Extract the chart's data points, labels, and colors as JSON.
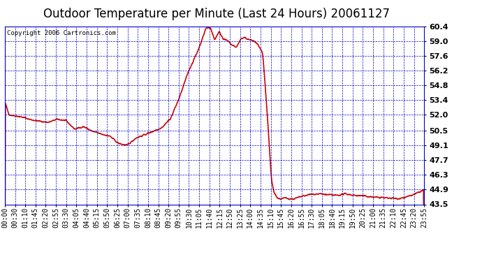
{
  "title": "Outdoor Temperature per Minute (Last 24 Hours) 20061127",
  "copyright_text": "Copyright 2006 Cartronics.com",
  "background_color": "#ffffff",
  "plot_background": "#ffffff",
  "line_color": "#cc0000",
  "grid_color": "#0000cc",
  "axis_color": "#000000",
  "text_color": "#000000",
  "yticks": [
    43.5,
    44.9,
    46.3,
    47.7,
    49.1,
    50.5,
    52.0,
    53.4,
    54.8,
    56.2,
    57.6,
    59.0,
    60.4
  ],
  "ymin": 43.5,
  "ymax": 60.4,
  "x_labels": [
    "00:00",
    "00:30",
    "01:10",
    "01:45",
    "02:20",
    "02:55",
    "03:30",
    "04:05",
    "04:40",
    "05:15",
    "05:50",
    "06:25",
    "07:00",
    "07:35",
    "08:10",
    "08:45",
    "09:20",
    "09:55",
    "10:30",
    "11:05",
    "11:40",
    "12:15",
    "12:50",
    "13:25",
    "14:00",
    "14:35",
    "15:10",
    "15:45",
    "16:20",
    "16:55",
    "17:30",
    "18:05",
    "18:40",
    "19:15",
    "19:50",
    "20:25",
    "21:00",
    "21:35",
    "22:10",
    "22:45",
    "23:20",
    "23:55"
  ],
  "title_fontsize": 12,
  "copyright_fontsize": 6.5,
  "tick_fontsize": 7,
  "ytick_fontsize": 8,
  "line_width": 1.2
}
